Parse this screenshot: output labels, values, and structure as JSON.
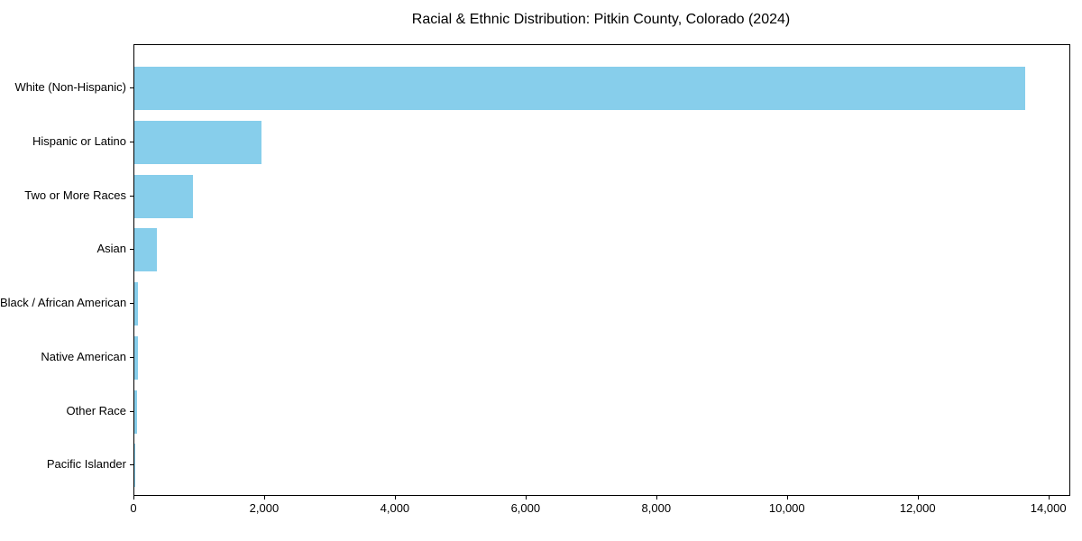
{
  "chart_data": {
    "type": "bar",
    "orientation": "horizontal",
    "title": "Racial & Ethnic Distribution: Pitkin County, Colorado (2024)",
    "categories": [
      "White (Non-Hispanic)",
      "Hispanic or Latino",
      "Two or More Races",
      "Asian",
      "Black / African American",
      "Native American",
      "Other Race",
      "Pacific Islander"
    ],
    "values": [
      13630,
      1940,
      900,
      340,
      60,
      50,
      45,
      5
    ],
    "xlabel": "",
    "ylabel": "",
    "xlim": [
      0,
      14308
    ],
    "x_tick_values": [
      0,
      2000,
      4000,
      6000,
      8000,
      10000,
      12000,
      14000
    ],
    "x_tick_labels": [
      "0",
      "2,000",
      "4,000",
      "6,000",
      "8,000",
      "10,000",
      "12,000",
      "14,000"
    ],
    "grid": false,
    "legend": "none",
    "bar_color": "#87CEEB",
    "axis_color": "#000000",
    "text_color": "#000000",
    "background_color": "#ffffff"
  }
}
